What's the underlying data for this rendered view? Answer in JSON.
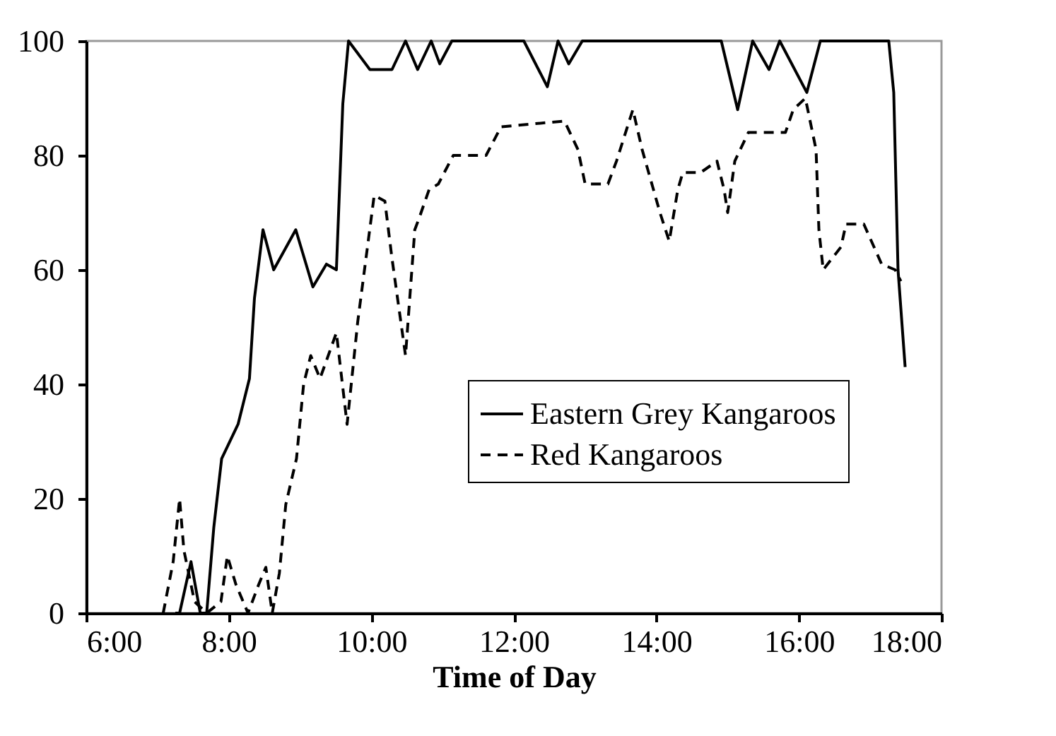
{
  "chart_data": {
    "type": "line",
    "xlabel": "Time of Day",
    "xlim": [
      6,
      18
    ],
    "xticks": [
      {
        "value": 6,
        "label": "6:00"
      },
      {
        "value": 8,
        "label": "8:00"
      },
      {
        "value": 10,
        "label": "10:00"
      },
      {
        "value": 12,
        "label": "12:00"
      },
      {
        "value": 14,
        "label": "14:00"
      },
      {
        "value": 16,
        "label": "16:00"
      },
      {
        "value": 18,
        "label": "18:00"
      }
    ],
    "ylim": [
      0,
      100
    ],
    "yticks": [
      0,
      20,
      40,
      60,
      80,
      100
    ],
    "grid": false,
    "legend": "bottom right",
    "marker": "none",
    "series": [
      {
        "name": "Eastern Grey Kangaroos",
        "color": "#000000",
        "line_style": "solid",
        "x": [
          7.25,
          7.31,
          7.47,
          7.6,
          7.69,
          7.79,
          7.9,
          8.13,
          8.29,
          8.36,
          8.48,
          8.63,
          8.94,
          9.18,
          9.37,
          9.51,
          9.6,
          9.68,
          9.98,
          10.29,
          10.48,
          10.65,
          10.84,
          10.96,
          11.13,
          12.14,
          12.47,
          12.62,
          12.77,
          12.96,
          14.91,
          15.14,
          15.35,
          15.58,
          15.73,
          16.11,
          16.3,
          17.26,
          17.33,
          17.39,
          17.49
        ],
        "values": [
          0,
          0,
          9,
          0,
          0,
          15,
          27,
          33,
          41,
          55,
          67,
          60,
          67,
          57,
          61,
          60,
          89,
          100,
          95,
          95,
          100,
          95,
          100,
          96,
          100,
          100,
          92,
          100,
          96,
          100,
          100,
          88,
          100,
          95,
          100,
          91,
          100,
          100,
          91,
          60,
          43
        ]
      },
      {
        "name": "Red Kangaroos",
        "color": "#000000",
        "line_style": "dashed",
        "x": [
          7.08,
          7.22,
          7.31,
          7.37,
          7.52,
          7.69,
          7.89,
          7.98,
          8.1,
          8.27,
          8.42,
          8.52,
          8.61,
          8.71,
          8.8,
          8.95,
          9.05,
          9.15,
          9.28,
          9.51,
          9.66,
          9.81,
          10.04,
          10.19,
          10.29,
          10.48,
          10.61,
          10.67,
          10.81,
          10.94,
          11.15,
          11.61,
          11.82,
          12.71,
          12.9,
          13.0,
          13.32,
          13.44,
          13.67,
          13.8,
          14.05,
          14.18,
          14.3,
          14.37,
          14.62,
          14.85,
          14.95,
          15.0,
          15.1,
          15.29,
          15.81,
          15.92,
          16.09,
          16.24,
          16.28,
          16.34,
          16.59,
          16.66,
          16.91,
          17.16,
          17.35,
          17.43
        ],
        "values": [
          0,
          9,
          20,
          11,
          2,
          0,
          2,
          10,
          5,
          0,
          5,
          8,
          0,
          7,
          19,
          27,
          40,
          45,
          41,
          49,
          33,
          51,
          73,
          72,
          62,
          45,
          67,
          69,
          74,
          75,
          80,
          80,
          85,
          86,
          81,
          75,
          75,
          79,
          88,
          81,
          70,
          65,
          74,
          77,
          77,
          79,
          74,
          70,
          79,
          84,
          84,
          88,
          90,
          81,
          67,
          60,
          64,
          68,
          68,
          61,
          60,
          58
        ]
      }
    ]
  }
}
